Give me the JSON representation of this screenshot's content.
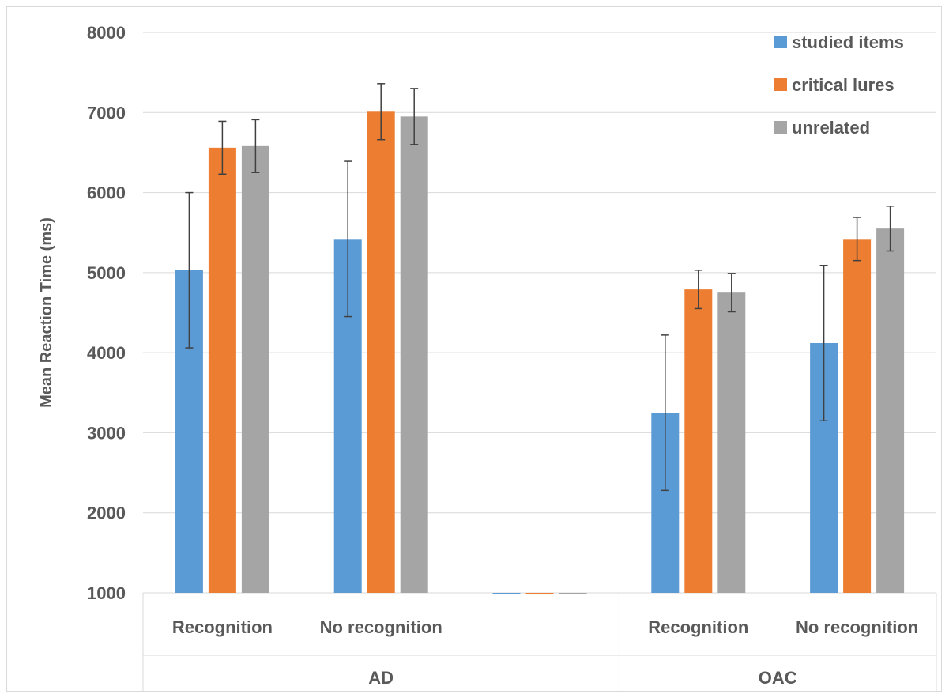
{
  "chart_data": {
    "type": "bar",
    "ylabel": "Mean Reaction Time (ms)",
    "ylim": [
      1000,
      8000
    ],
    "yticks": [
      1000,
      2000,
      3000,
      4000,
      5000,
      6000,
      7000,
      8000
    ],
    "grid": true,
    "legend_position": "top-right",
    "categories": [
      "Recognition",
      "No recognition",
      "",
      "Recognition",
      "No recognition"
    ],
    "groups": [
      {
        "label": "AD",
        "categories": [
          "Recognition",
          "No recognition"
        ]
      },
      {
        "label": "OAC",
        "categories": [
          "Recognition",
          "No recognition"
        ]
      }
    ],
    "series": [
      {
        "name": "studied items",
        "color": "#5b9bd5",
        "values": [
          5030,
          5420,
          980,
          3250,
          4120
        ],
        "errors": [
          970,
          970,
          0,
          970,
          970
        ]
      },
      {
        "name": "critical lures",
        "color": "#ed7d31",
        "values": [
          6560,
          7010,
          980,
          4790,
          5420
        ],
        "errors": [
          330,
          350,
          0,
          240,
          270
        ]
      },
      {
        "name": "unrelated",
        "color": "#a5a5a5",
        "values": [
          6580,
          6950,
          980,
          4750,
          5550
        ],
        "errors": [
          330,
          350,
          0,
          240,
          280
        ]
      }
    ]
  }
}
